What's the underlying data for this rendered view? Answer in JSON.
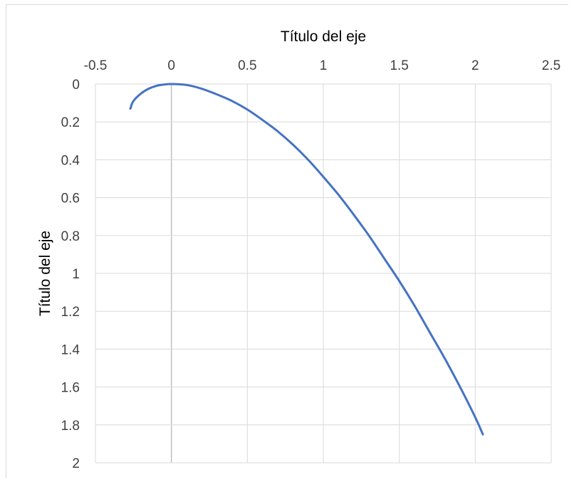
{
  "chart_data": {
    "type": "line",
    "title": "",
    "xlabel": "Título del eje",
    "ylabel": "Título del eje",
    "xlim": [
      -0.5,
      2.5
    ],
    "ylim": [
      0,
      2
    ],
    "y_reversed": true,
    "x_axis_position": "top",
    "grid": true,
    "legend": "none",
    "x_ticks": [
      "-0.5",
      "0",
      "0.5",
      "1",
      "1.5",
      "2",
      "2.5"
    ],
    "y_ticks": [
      "0",
      "0.2",
      "0.4",
      "0.6",
      "0.8",
      "1",
      "1.2",
      "1.4",
      "1.6",
      "1.8",
      "2"
    ],
    "colors": {
      "series": "#4472C4",
      "grid": "#d9d9d9",
      "zero_line": "#bfbfbf"
    },
    "series": [
      {
        "x": [
          -0.27,
          -0.25,
          -0.2,
          -0.15,
          -0.1,
          -0.05,
          0,
          0.1,
          0.2,
          0.3,
          0.4,
          0.5,
          0.6,
          0.7,
          0.8,
          0.9,
          1.0,
          1.1,
          1.2,
          1.3,
          1.4,
          1.5,
          1.6,
          1.7,
          1.8,
          1.9,
          2.0,
          2.05
        ],
        "y": [
          0.13,
          0.09,
          0.05,
          0.025,
          0.01,
          0.003,
          0,
          0.005,
          0.025,
          0.055,
          0.09,
          0.135,
          0.19,
          0.25,
          0.32,
          0.4,
          0.49,
          0.585,
          0.69,
          0.8,
          0.92,
          1.04,
          1.17,
          1.31,
          1.45,
          1.6,
          1.76,
          1.85
        ]
      }
    ]
  }
}
